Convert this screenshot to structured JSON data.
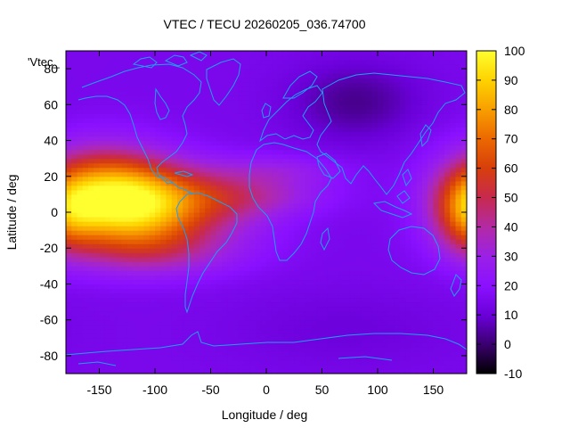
{
  "chart_data": {
    "type": "heatmap",
    "title": "VTEC / TECU 20260205_036.74700",
    "xlabel": "Longitude / deg",
    "ylabel": "Latitude / deg",
    "xlim": [
      -180,
      180
    ],
    "ylim": [
      -90,
      90
    ],
    "x_ticks": [
      "-150",
      "-100",
      "-50",
      "0",
      "50",
      "100",
      "150"
    ],
    "x_tick_values": [
      -150,
      -100,
      -50,
      0,
      50,
      100,
      150
    ],
    "y_ticks": [
      "80",
      "60",
      "40",
      "20",
      "0",
      "-20",
      "-40",
      "-60",
      "-80"
    ],
    "y_tick_values": [
      80,
      60,
      40,
      20,
      0,
      -20,
      -40,
      -60,
      -80
    ],
    "colorbar": {
      "range": [
        -10,
        100
      ],
      "ticks": [
        "100",
        "90",
        "80",
        "70",
        "60",
        "50",
        "40",
        "30",
        "20",
        "10",
        "0",
        "-10"
      ],
      "tick_values": [
        100,
        90,
        80,
        70,
        60,
        50,
        40,
        30,
        20,
        10,
        0,
        -10
      ],
      "colormap": [
        "#000000",
        "#3a006e",
        "#6a00d8",
        "#8a10ff",
        "#9a20e8",
        "#b22aa8",
        "#c82a4a",
        "#d8400a",
        "#ec6a00",
        "#f8a000",
        "#fed300",
        "#ffff30"
      ]
    },
    "background_level": 15,
    "anomalies": [
      {
        "lon": -150,
        "lat": 9,
        "sx": 38,
        "sy": 18,
        "amp": 60
      },
      {
        "lon": -105,
        "lat": 4,
        "sx": 38,
        "sy": 16,
        "amp": 50
      },
      {
        "lon": -95,
        "lat": -22,
        "sx": 55,
        "sy": 10,
        "amp": 18
      },
      {
        "lon": -45,
        "lat": 6,
        "sx": 42,
        "sy": 14,
        "amp": 22
      },
      {
        "lon": 0,
        "lat": 10,
        "sx": 45,
        "sy": 8,
        "amp": 12
      },
      {
        "lon": 15,
        "lat": 24,
        "sx": 40,
        "sy": 6,
        "amp": 10
      },
      {
        "lon": 180,
        "lat": 0,
        "sx": 20,
        "sy": 15,
        "amp": 30
      },
      {
        "lon": 80,
        "lat": 62,
        "sx": 40,
        "sy": 15,
        "amp": -12
      },
      {
        "lon": 70,
        "lat": -65,
        "sx": 70,
        "sy": 15,
        "amp": -4
      }
    ],
    "legend_label": "'Vtec_",
    "coastline_color": "#1fa0f0"
  }
}
